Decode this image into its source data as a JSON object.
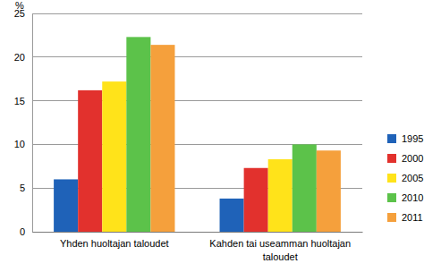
{
  "chart_data": {
    "type": "bar",
    "y_label": "%",
    "categories": [
      "Yhden huoltajan taloudet",
      "Kahden tai useamman huoltajan taloudet"
    ],
    "series": [
      {
        "name": "1995",
        "color": "#1f62b8",
        "values": [
          6.0,
          3.8
        ]
      },
      {
        "name": "2000",
        "color": "#e2312d",
        "values": [
          16.2,
          7.3
        ]
      },
      {
        "name": "2005",
        "color": "#ffe31a",
        "values": [
          17.2,
          8.3
        ]
      },
      {
        "name": "2010",
        "color": "#5cc24a",
        "values": [
          22.3,
          10.0
        ]
      },
      {
        "name": "2011",
        "color": "#f5a03c",
        "values": [
          21.4,
          9.3
        ]
      }
    ],
    "ylim": [
      0,
      25
    ],
    "yticks": [
      0,
      5,
      10,
      15,
      20,
      25
    ],
    "grid": true,
    "legend": "right"
  }
}
